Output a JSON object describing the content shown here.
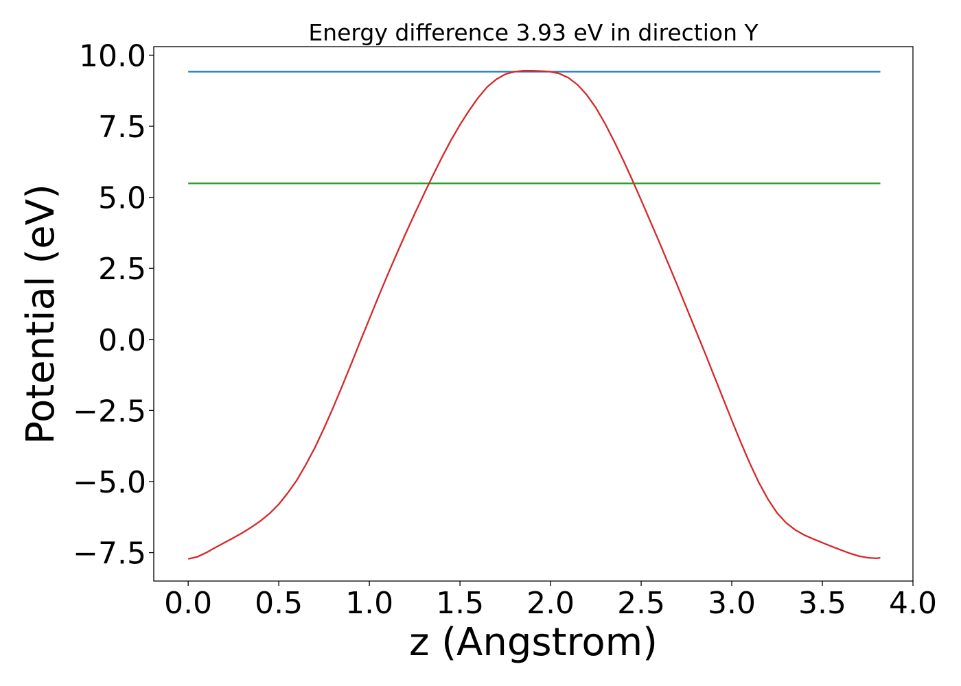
{
  "chart_data": {
    "type": "line",
    "title": "Energy difference 3.93 eV in direction Y",
    "xlabel": "z (Angstrom)",
    "ylabel": "Potential (eV)",
    "xlim": [
      -0.19,
      4.0
    ],
    "ylim": [
      -8.5,
      10.3
    ],
    "xticks": [
      0.0,
      0.5,
      1.0,
      1.5,
      2.0,
      2.5,
      3.0,
      3.5,
      4.0
    ],
    "xtick_labels": [
      "0.0",
      "0.5",
      "1.0",
      "1.5",
      "2.0",
      "2.5",
      "3.0",
      "3.5",
      "4.0"
    ],
    "yticks": [
      -7.5,
      -5.0,
      -2.5,
      0.0,
      2.5,
      5.0,
      7.5,
      10.0
    ],
    "ytick_labels": [
      "−7.5",
      "−5.0",
      "−2.5",
      "0.0",
      "2.5",
      "5.0",
      "7.5",
      "10.0"
    ],
    "grid": false,
    "series": [
      {
        "color": "#1f77b4",
        "x": [
          0.0,
          3.82
        ],
        "y": [
          9.42,
          9.42
        ]
      },
      {
        "color": "#2ca02c",
        "x": [
          0.0,
          3.82
        ],
        "y": [
          5.49,
          5.49
        ]
      },
      {
        "color": "#d62728",
        "x": [
          0.0,
          0.05,
          0.1,
          0.15,
          0.2,
          0.25,
          0.3,
          0.35,
          0.4,
          0.45,
          0.5,
          0.55,
          0.6,
          0.65,
          0.7,
          0.75,
          0.8,
          0.85,
          0.9,
          0.95,
          1.0,
          1.05,
          1.1,
          1.15,
          1.2,
          1.25,
          1.3,
          1.35,
          1.4,
          1.45,
          1.5,
          1.55,
          1.6,
          1.65,
          1.7,
          1.75,
          1.8,
          1.85,
          1.9,
          1.95,
          2.0,
          2.05,
          2.1,
          2.15,
          2.2,
          2.25,
          2.3,
          2.35,
          2.4,
          2.45,
          2.5,
          2.55,
          2.6,
          2.65,
          2.7,
          2.75,
          2.8,
          2.85,
          2.9,
          2.95,
          3.0,
          3.05,
          3.1,
          3.15,
          3.2,
          3.25,
          3.3,
          3.35,
          3.4,
          3.45,
          3.5,
          3.55,
          3.6,
          3.65,
          3.7,
          3.75,
          3.8,
          3.82
        ],
        "y": [
          -7.72,
          -7.65,
          -7.5,
          -7.32,
          -7.15,
          -6.98,
          -6.8,
          -6.6,
          -6.38,
          -6.12,
          -5.8,
          -5.4,
          -4.95,
          -4.4,
          -3.8,
          -3.12,
          -2.4,
          -1.64,
          -0.86,
          -0.06,
          0.72,
          1.5,
          2.26,
          3.0,
          3.72,
          4.42,
          5.1,
          5.76,
          6.4,
          7.0,
          7.55,
          8.05,
          8.5,
          8.88,
          9.15,
          9.33,
          9.42,
          9.45,
          9.45,
          9.44,
          9.42,
          9.35,
          9.2,
          8.95,
          8.6,
          8.15,
          7.6,
          6.98,
          6.32,
          5.62,
          4.9,
          4.16,
          3.42,
          2.66,
          1.9,
          1.12,
          0.34,
          -0.44,
          -1.24,
          -2.04,
          -2.84,
          -3.62,
          -4.36,
          -5.04,
          -5.62,
          -6.1,
          -6.45,
          -6.7,
          -6.88,
          -7.02,
          -7.15,
          -7.28,
          -7.4,
          -7.52,
          -7.62,
          -7.68,
          -7.7,
          -7.68
        ]
      }
    ]
  }
}
